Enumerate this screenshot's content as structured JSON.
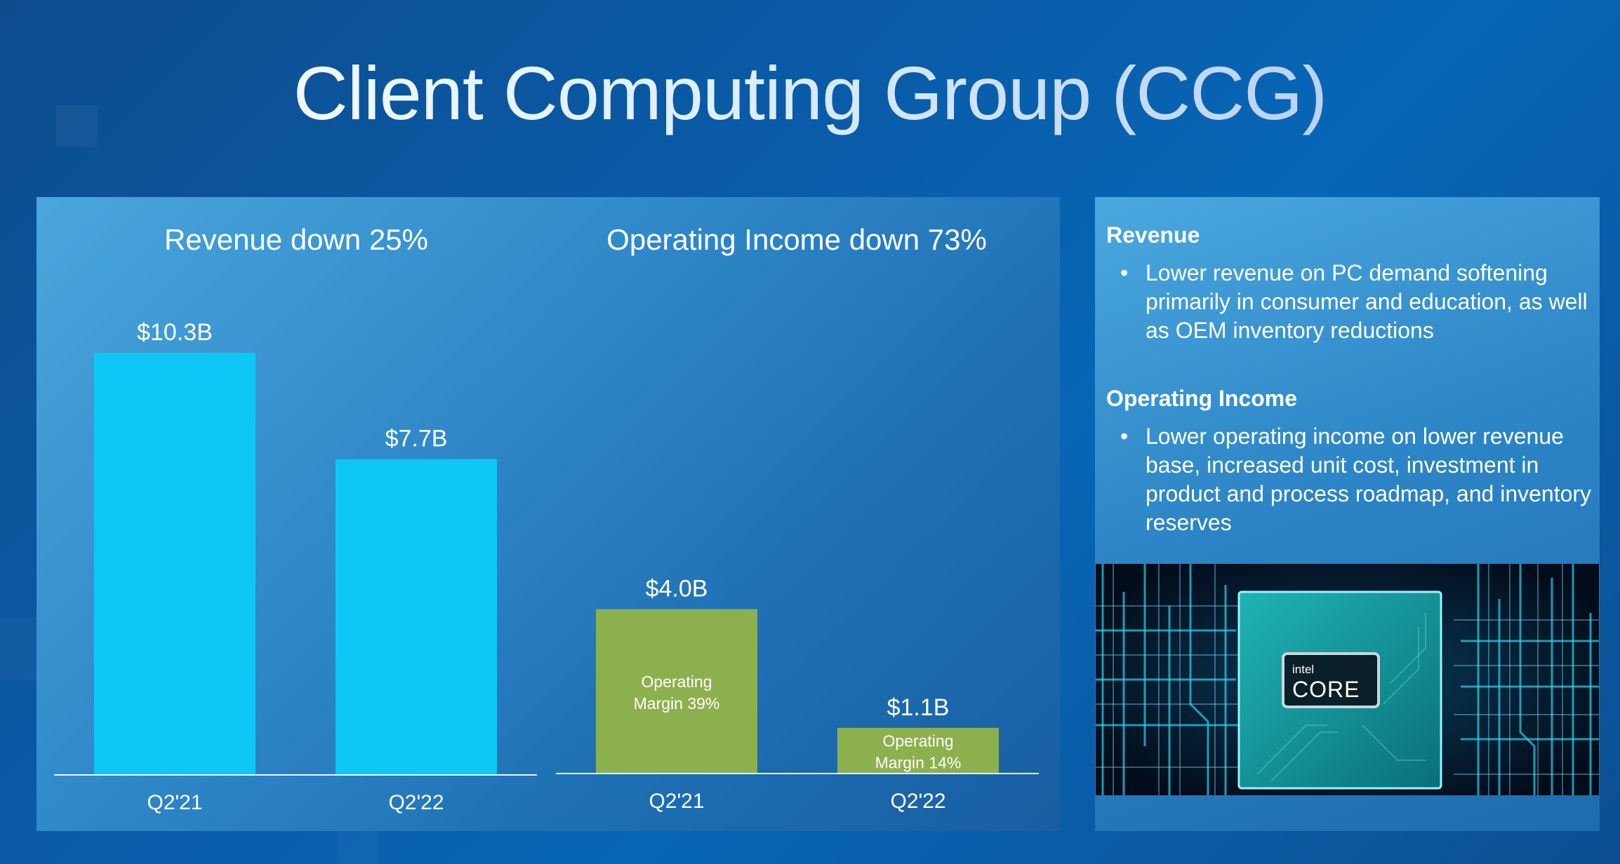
{
  "slide": {
    "title": "Client Computing Group (CCG)"
  },
  "colors": {
    "revenue_bar": "#0fc7f7",
    "operating_income_bar": "#8db04e",
    "baseline": "#e8f3ff"
  },
  "chart_data": [
    {
      "type": "bar",
      "title": "Revenue down 25%",
      "categories": [
        "Q2'21",
        "Q2'22"
      ],
      "values": [
        10.3,
        7.7
      ],
      "value_labels": [
        "$10.3B",
        "$7.7B"
      ],
      "unit": "$B",
      "ylim": [
        0,
        10.3
      ],
      "grid": false,
      "color": "#0fc7f7"
    },
    {
      "type": "bar",
      "title": "Operating Income down 73%",
      "categories": [
        "Q2'21",
        "Q2'22"
      ],
      "values": [
        4.0,
        1.1
      ],
      "value_labels": [
        "$4.0B",
        "$1.1B"
      ],
      "inner_labels": [
        [
          "Operating",
          "Margin 39%"
        ],
        [
          "Operating",
          "Margin 14%"
        ]
      ],
      "operating_margin_percent": [
        39,
        14
      ],
      "unit": "$B",
      "ylim": [
        0,
        10.3
      ],
      "grid": false,
      "color": "#8db04e"
    }
  ],
  "sidebar": {
    "revenue_heading": "Revenue",
    "revenue_bullet": "Lower revenue on PC demand softening primarily in consumer and education, as well as OEM inventory reductions",
    "opinc_heading": "Operating Income",
    "opinc_bullet": "Lower operating income on lower revenue base, increased unit cost, investment in product and process roadmap, and inventory reserves",
    "bullet_symbol": "•"
  },
  "chip": {
    "brand": "intel",
    "name": "CORE"
  }
}
